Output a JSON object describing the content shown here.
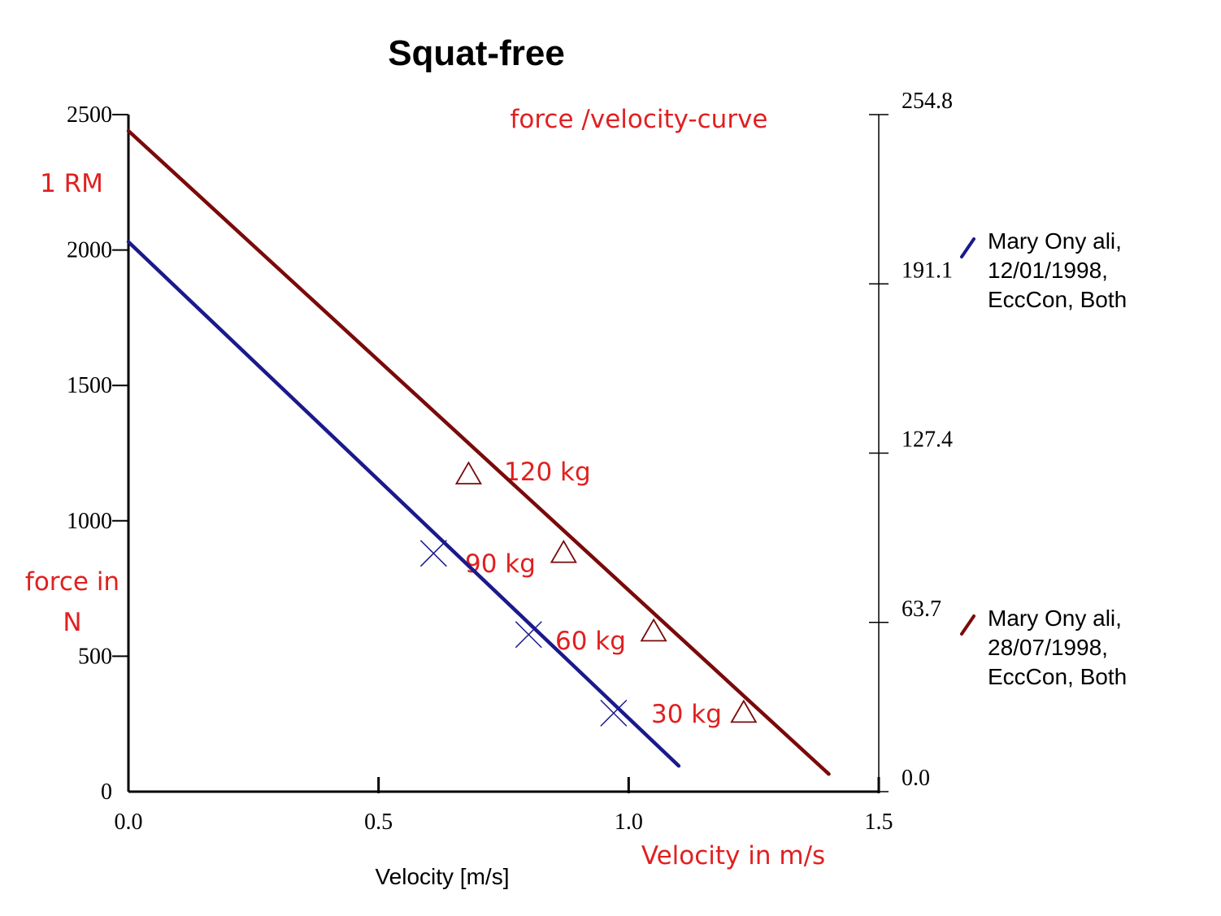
{
  "chart_data": {
    "type": "line",
    "title": "Squat-free",
    "xlabel": "Velocity [m/s]",
    "xlim": [
      0.0,
      1.5
    ],
    "ylim": [
      0,
      2500
    ],
    "y2lim": [
      0.0,
      254.8
    ],
    "xticks": [
      "0.0",
      "0.5",
      "1.0",
      "1.5"
    ],
    "yticks": [
      "0",
      "500",
      "1000",
      "1500",
      "2000",
      "2500"
    ],
    "y2ticks": [
      "0.0",
      "63.7",
      "127.4",
      "191.1",
      "254.8"
    ],
    "grid": false,
    "legend_position": "right",
    "series": [
      {
        "name": "Mary Onyali, 12/01/1998, EccCon, Both",
        "legend_lines": [
          "Mary  Ony ali,",
          "12/01/1998,",
          "EccCon, Both"
        ],
        "color": "#1a1a8c",
        "marker": "x",
        "x": [
          0.0,
          1.1
        ],
        "y": [
          2030,
          95
        ],
        "markers": [
          {
            "x": 0.61,
            "y": 880
          },
          {
            "x": 0.8,
            "y": 580
          },
          {
            "x": 0.97,
            "y": 290
          }
        ]
      },
      {
        "name": "Mary Onyali, 28/07/1998, EccCon, Both",
        "legend_lines": [
          "Mary  Ony ali,",
          "28/07/1998,",
          "EccCon, Both"
        ],
        "color": "#7a0a0a",
        "marker": "triangle",
        "x": [
          0.0,
          1.4
        ],
        "y": [
          2440,
          65
        ],
        "markers": [
          {
            "x": 0.68,
            "y": 1170
          },
          {
            "x": 0.87,
            "y": 880
          },
          {
            "x": 1.05,
            "y": 590
          },
          {
            "x": 1.23,
            "y": 290
          }
        ]
      }
    ],
    "annotations": {
      "subtitle": "force /velocity-curve",
      "one_rm": "1 RM",
      "force_line1": "force in",
      "force_line2": "N",
      "velocity": "Velocity in m/s",
      "load_labels": [
        "120  kg",
        "90 kg",
        "60 kg",
        "30 kg"
      ]
    }
  }
}
